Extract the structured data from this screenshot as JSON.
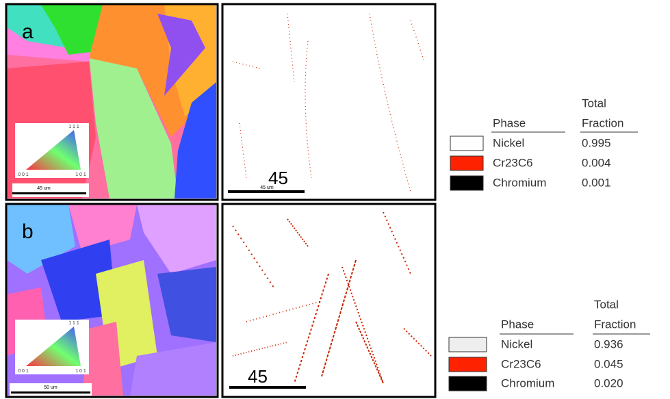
{
  "panels": [
    {
      "label": "a",
      "ipf_scale": "45 um",
      "triangle": {
        "top": "1 1 1",
        "left": "0 0 1",
        "right": "1 0 1"
      },
      "phase_scale_big": "45",
      "phase_scale": "45 um",
      "table": {
        "header": {
          "phase": "Phase",
          "total": "Total",
          "fraction": "Fraction"
        },
        "rows": [
          [
            "Nickel",
            "0.995"
          ],
          [
            "Cr23C6",
            "0.004"
          ],
          [
            "Chromium",
            "0.001"
          ]
        ]
      }
    },
    {
      "label": "b",
      "ipf_scale": "50 um",
      "triangle": {
        "top": "1 1 1",
        "left": "0 0 1",
        "right": "1 0 1"
      },
      "phase_scale_big": "45",
      "table": {
        "header": {
          "phase": "Phase",
          "total": "Total",
          "fraction": "Fraction"
        },
        "rows": [
          [
            "Nickel",
            "0.936"
          ],
          [
            "Cr23C6",
            "0.045"
          ],
          [
            "Chromium",
            "0.020"
          ]
        ]
      }
    }
  ]
}
